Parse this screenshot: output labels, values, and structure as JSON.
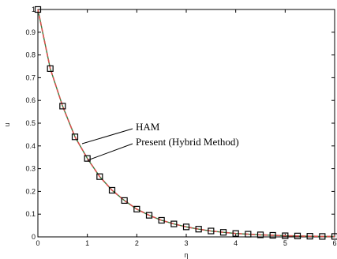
{
  "chart_data": {
    "type": "line",
    "xlabel": "η",
    "ylabel": "u",
    "xlim": [
      0,
      6
    ],
    "ylim": [
      0,
      1
    ],
    "x_ticks": [
      "0",
      "1",
      "2",
      "3",
      "4",
      "5",
      "6"
    ],
    "y_ticks": [
      "0",
      "0.1",
      "0.2",
      "0.3",
      "0.4",
      "0.5",
      "0.6",
      "0.7",
      "0.8",
      "0.9",
      "1"
    ],
    "grid": false,
    "colors": {
      "ham": "#d9534f",
      "present_line": "#3a7a3a",
      "markers": "#000000"
    },
    "series": [
      {
        "name": "HAM",
        "style": "dashed line",
        "x": [
          0,
          0.25,
          0.5,
          0.75,
          1,
          1.25,
          1.5,
          1.75,
          2,
          2.25,
          2.5,
          2.75,
          3,
          3.25,
          3.5,
          3.75,
          4,
          4.25,
          4.5,
          4.75,
          5,
          5.25,
          5.5,
          5.75,
          6
        ],
        "y": [
          1.0,
          0.74,
          0.575,
          0.44,
          0.345,
          0.265,
          0.205,
          0.16,
          0.122,
          0.095,
          0.073,
          0.057,
          0.044,
          0.034,
          0.026,
          0.02,
          0.015,
          0.012,
          0.009,
          0.007,
          0.005,
          0.004,
          0.003,
          0.002,
          0.002
        ]
      },
      {
        "name": "Present (Hybrid Method)",
        "style": "square markers",
        "x": [
          0,
          0.25,
          0.5,
          0.75,
          1,
          1.25,
          1.5,
          1.75,
          2,
          2.25,
          2.5,
          2.75,
          3,
          3.25,
          3.5,
          3.75,
          4,
          4.25,
          4.5,
          4.75,
          5,
          5.25,
          5.5,
          5.75,
          6
        ],
        "y": [
          1.0,
          0.74,
          0.575,
          0.44,
          0.345,
          0.265,
          0.205,
          0.16,
          0.122,
          0.095,
          0.073,
          0.057,
          0.044,
          0.034,
          0.026,
          0.02,
          0.015,
          0.012,
          0.009,
          0.007,
          0.005,
          0.004,
          0.003,
          0.002,
          0.002
        ]
      }
    ],
    "annotations": [
      "HAM",
      "Present (Hybrid Method)"
    ]
  }
}
